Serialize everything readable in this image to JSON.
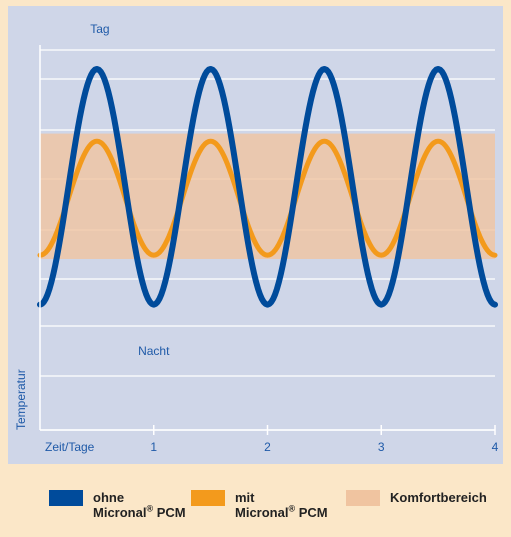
{
  "chart_data": {
    "type": "line",
    "title": "",
    "xlabel": "Zeit/Tage",
    "ylabel": "Temperatur",
    "x_ticks": [
      "1",
      "2",
      "3",
      "4"
    ],
    "xlim": [
      0,
      4
    ],
    "ylim": [
      0,
      1
    ],
    "grid": true,
    "annotations": {
      "day": "Tag",
      "night": "Nacht"
    },
    "comfort_band": {
      "label": "Komfortbereich",
      "y_low": 0.45,
      "y_high": 0.78,
      "color": "#f0c4a0"
    },
    "series": [
      {
        "name_line1": "ohne",
        "name_line2": "Micronal",
        "name_suffix": "PCM",
        "color": "#004b9b",
        "x": [
          0,
          0.125,
          0.25,
          0.375,
          0.5,
          0.625,
          0.75,
          0.875,
          1,
          1.125,
          1.25,
          1.375,
          1.5,
          1.625,
          1.75,
          1.875,
          2,
          2.125,
          2.25,
          2.375,
          2.5,
          2.625,
          2.75,
          2.875,
          3,
          3.125,
          3.25,
          3.375,
          3.5,
          3.625,
          3.75,
          3.875,
          4
        ],
        "y": [
          0.33,
          0.43,
          0.62,
          0.86,
          0.95,
          0.86,
          0.62,
          0.43,
          0.33,
          0.43,
          0.62,
          0.86,
          0.95,
          0.86,
          0.62,
          0.43,
          0.33,
          0.43,
          0.62,
          0.86,
          0.95,
          0.86,
          0.62,
          0.43,
          0.33,
          0.43,
          0.62,
          0.86,
          0.95,
          0.86,
          0.62,
          0.43,
          0.33
        ]
      },
      {
        "name_line1": "mit",
        "name_line2": "Micronal",
        "name_suffix": "PCM",
        "color": "#f39a1c",
        "x": [
          0,
          0.125,
          0.25,
          0.375,
          0.5,
          0.625,
          0.75,
          0.875,
          1,
          1.125,
          1.25,
          1.375,
          1.5,
          1.625,
          1.75,
          1.875,
          2,
          2.125,
          2.25,
          2.375,
          2.5,
          2.625,
          2.75,
          2.875,
          3,
          3.125,
          3.25,
          3.375,
          3.5,
          3.625,
          3.75,
          3.875,
          4
        ],
        "y": [
          0.46,
          0.5,
          0.6,
          0.72,
          0.76,
          0.72,
          0.6,
          0.5,
          0.46,
          0.5,
          0.6,
          0.72,
          0.76,
          0.72,
          0.6,
          0.5,
          0.46,
          0.5,
          0.6,
          0.72,
          0.76,
          0.72,
          0.6,
          0.5,
          0.46,
          0.5,
          0.6,
          0.72,
          0.76,
          0.72,
          0.6,
          0.5,
          0.46
        ]
      }
    ]
  },
  "legend": {
    "items": [
      {
        "line1": "ohne",
        "line2": "Micronal",
        "reg": "®",
        "suffix": " PCM",
        "color": "#004b9b"
      },
      {
        "line1": "mit",
        "line2": "Micronal",
        "reg": "®",
        "suffix": " PCM",
        "color": "#f39a1c"
      },
      {
        "line1": "Komfortbereich",
        "line2": "",
        "reg": "",
        "suffix": "",
        "color": "#f0c4a0"
      }
    ]
  }
}
